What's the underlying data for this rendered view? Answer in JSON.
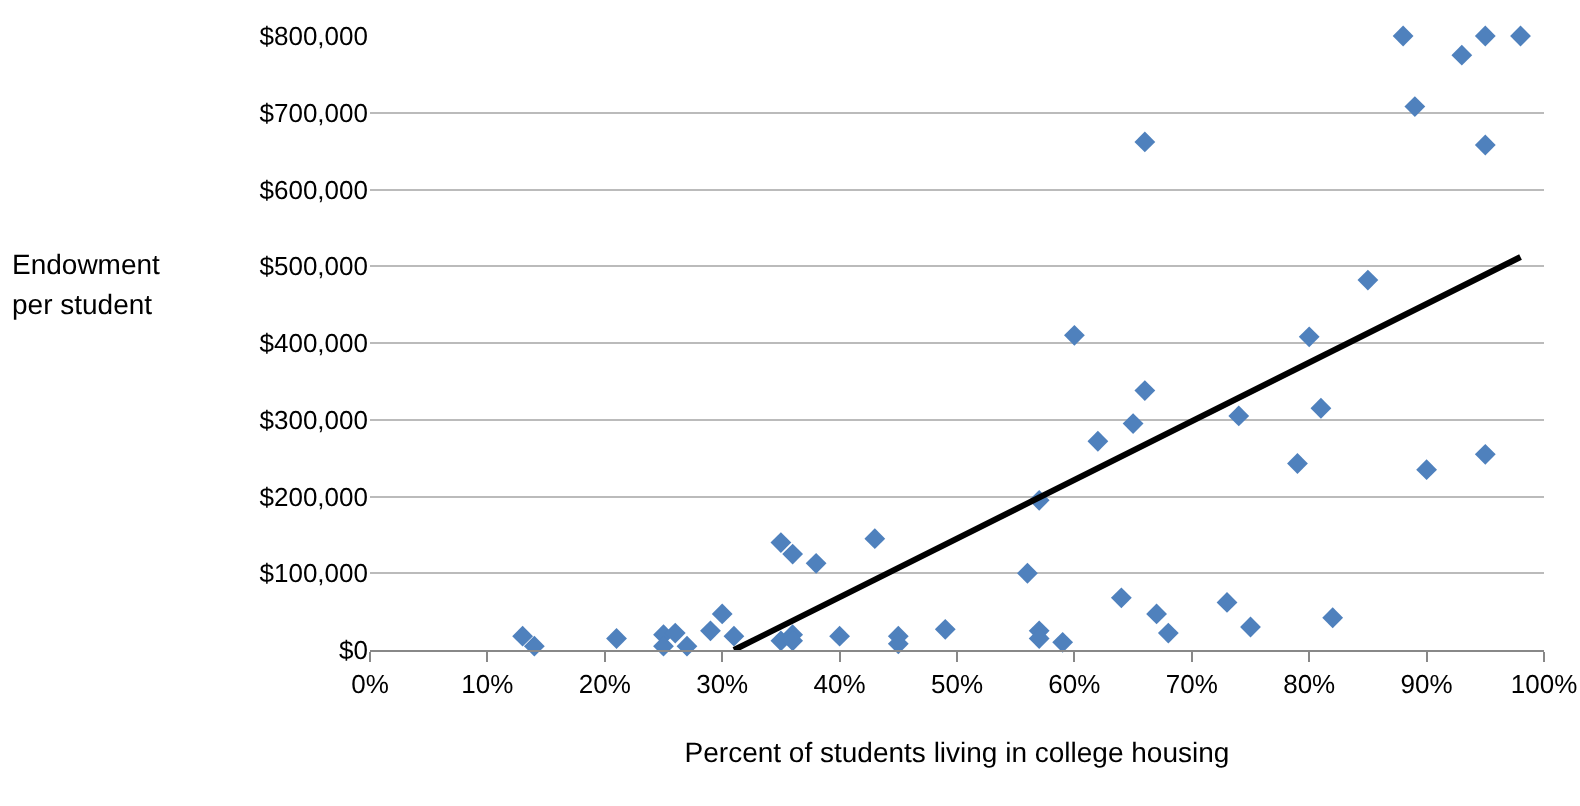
{
  "chart_data": {
    "type": "scatter",
    "xlabel": "Percent of students living in college housing",
    "ylabel": "Endowment per student",
    "xlim": [
      0,
      100
    ],
    "xticks": [
      {
        "value": 0,
        "label": "0%"
      },
      {
        "value": 10,
        "label": "10%"
      },
      {
        "value": 20,
        "label": "20%"
      },
      {
        "value": 30,
        "label": "30%"
      },
      {
        "value": 40,
        "label": "40%"
      },
      {
        "value": 50,
        "label": "50%"
      },
      {
        "value": 60,
        "label": "60%"
      },
      {
        "value": 70,
        "label": "70%"
      },
      {
        "value": 80,
        "label": "80%"
      },
      {
        "value": 90,
        "label": "90%"
      },
      {
        "value": 100,
        "label": "100%"
      }
    ],
    "ylim": [
      0,
      800000
    ],
    "yticks": [
      {
        "value": 0,
        "label": "$0"
      },
      {
        "value": 100000,
        "label": "$100,000"
      },
      {
        "value": 200000,
        "label": "$200,000"
      },
      {
        "value": 300000,
        "label": "$300,000"
      },
      {
        "value": 400000,
        "label": "$400,000"
      },
      {
        "value": 500000,
        "label": "$500,000"
      },
      {
        "value": 600000,
        "label": "$600,000"
      },
      {
        "value": 700000,
        "label": "$700,000"
      },
      {
        "value": 800000,
        "label": "$800,000"
      }
    ],
    "grid": "y",
    "series": [
      {
        "type": "scatter",
        "marker": "diamond",
        "color": "#4f81bd",
        "x": [
          13,
          14,
          21,
          25,
          25,
          26,
          27,
          29,
          30,
          31,
          35,
          36,
          35,
          36,
          36,
          38,
          40,
          43,
          45,
          45,
          49,
          56,
          57,
          57,
          57,
          59,
          60,
          62,
          64,
          65,
          66,
          66,
          67,
          68,
          73,
          74,
          75,
          79,
          80,
          81,
          82,
          85,
          88,
          89,
          90,
          93,
          95,
          95,
          95,
          98
        ],
        "values": [
          18000,
          5000,
          15000,
          20000,
          5000,
          22000,
          5000,
          25000,
          47000,
          18000,
          140000,
          125000,
          12000,
          20000,
          12000,
          113000,
          18000,
          145000,
          18000,
          8000,
          27000,
          100000,
          195000,
          25000,
          15000,
          10000,
          410000,
          272000,
          68000,
          295000,
          338000,
          662000,
          47000,
          22000,
          62000,
          305000,
          30000,
          243000,
          408000,
          315000,
          42000,
          482000,
          800000,
          708000,
          235000,
          775000,
          800000,
          658000,
          255000,
          800000
        ]
      },
      {
        "type": "line",
        "marker": "none",
        "color": "#000000",
        "x": [
          31,
          98
        ],
        "values": [
          0,
          512000
        ]
      }
    ]
  }
}
